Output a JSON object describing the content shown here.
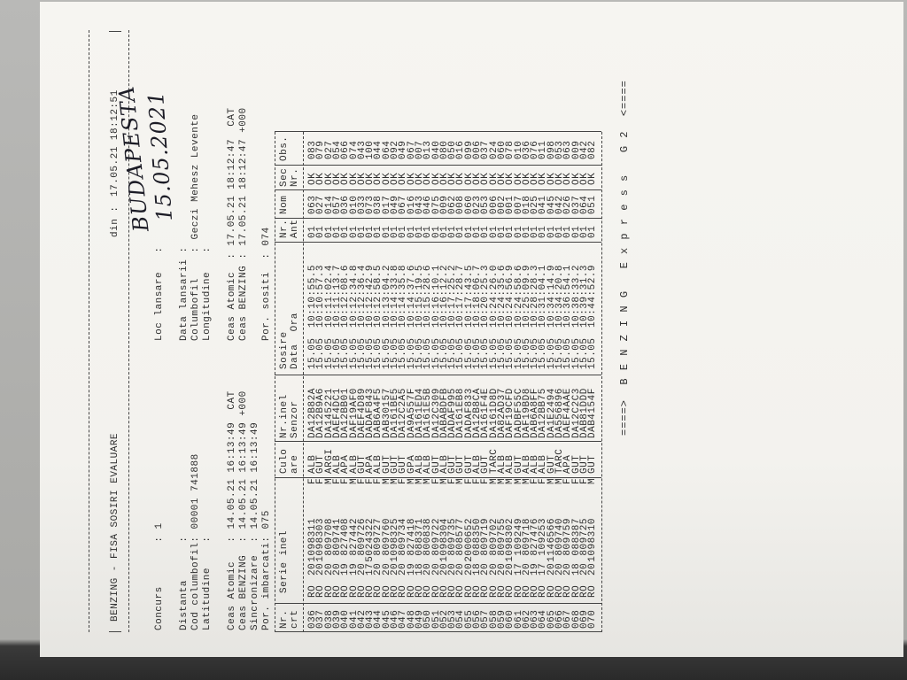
{
  "header": {
    "title": "BENZING - FISA SOSIRI EVALUARE",
    "date_label": "din :",
    "date": "17.05.21 18:12:51"
  },
  "fields_left": [
    {
      "label": "Concurs       :",
      "value": "1"
    },
    {
      "label": "Distanta      :"
    },
    {
      "label": "Cod columbofil:",
      "value": "00001 741888"
    },
    {
      "label": "Latitudine    :"
    },
    {
      "label": "Ceas Atomic   :",
      "value": "14.05.21 16:13:49  CAT"
    },
    {
      "label": "Ceas BENZING  :",
      "value": "14.05.21 16:13:49 +000"
    },
    {
      "label": "Sincronizare  :",
      "value": "14.05.21 16:13:49"
    },
    {
      "label": "Por. imbarcati:",
      "value": "075"
    }
  ],
  "fields_right": [
    {
      "label": "Loc lansare   :"
    },
    {
      "label": "Data lansarii :"
    },
    {
      "label": "Columbofil    :",
      "value": "Geczi Mehesz Levente"
    },
    {
      "label": "Longitudine   :"
    },
    {
      "label": "Ceas Atomic  :",
      "value": "17.05.21 18:12:47  CAT"
    },
    {
      "label": "Ceas BENZING :",
      "value": "17.05.21 18:12:47 +000"
    },
    {
      "label": "Por. sositi  :",
      "value": "074"
    }
  ],
  "handwriting": {
    "place": "BUDAPESTA",
    "date": "15.05.2021"
  },
  "table": {
    "columns": [
      [
        "Nr.",
        "crt"
      ],
      [
        "Serie inel"
      ],
      [
        "Culo",
        "are"
      ],
      [
        "Nr.inel",
        "Senzor"
      ],
      [
        "Sosire",
        "Data  Ora"
      ],
      [
        "Nr.",
        "Ant"
      ],
      [
        "Nom"
      ],
      [
        "Sec",
        "Nr."
      ],
      [
        "Obs."
      ]
    ],
    "rows": [
      [
        "036",
        "RO",
        "20",
        "1098311",
        "F",
        "ALB",
        "DA12B82A",
        "15.05",
        "10:10:55.5",
        "01",
        "063",
        "OK",
        "083"
      ],
      [
        "037",
        "RO",
        "20",
        "1098303",
        "F",
        "GUT",
        "DA12B9A6",
        "15.05",
        "10:10:57.3",
        "01",
        "027",
        "OK",
        "079"
      ],
      [
        "038",
        "RO",
        "20",
        "809708",
        "M",
        "ARGI",
        "DA145221",
        "15.05",
        "10:11:02.4",
        "01",
        "014",
        "OK",
        "027"
      ],
      [
        "039",
        "RO",
        "20",
        "809741",
        "F",
        "ALB",
        "DAEF4DC1",
        "15.05",
        "10:11:13.7",
        "01",
        "057",
        "OK",
        "054"
      ],
      [
        "040",
        "RO",
        "19",
        "827408",
        "F",
        "APA",
        "DA12BB01",
        "15.05",
        "10:12:08.6",
        "01",
        "036",
        "OK",
        "066"
      ],
      [
        "041",
        "RO",
        "19",
        "827442",
        "M",
        "ALB",
        "DAF19AF0",
        "15.05",
        "10:12:34.8",
        "01",
        "010",
        "OK",
        "074"
      ],
      [
        "042",
        "RO",
        "20",
        "809726",
        "F",
        "GUT",
        "DAEF4D89",
        "15.05",
        "10:12:36.4",
        "01",
        "033",
        "OK",
        "043"
      ],
      [
        "043",
        "RO",
        "17",
        "5024322",
        "F",
        "APA",
        "DADAF843",
        "15.05",
        "10:12:42.9",
        "01",
        "073",
        "OK",
        "100"
      ],
      [
        "044",
        "RO",
        "20",
        "809727",
        "F",
        "ALB",
        "DAB6A4F5",
        "15.05",
        "10:12:58.5",
        "01",
        "038",
        "OK",
        "044"
      ],
      [
        "045",
        "RO",
        "20",
        "809760",
        "M",
        "GUT",
        "DAB30157",
        "15.05",
        "10:13:04.2",
        "01",
        "017",
        "OK",
        "064"
      ],
      [
        "046",
        "RO",
        "20",
        "1098325",
        "M",
        "GUT",
        "DA161BE5",
        "15.05",
        "10:14:33.8",
        "01",
        "049",
        "OK",
        "092"
      ],
      [
        "047",
        "RO",
        "20",
        "809734",
        "F",
        "GUT",
        "DA12C2A5",
        "15.05",
        "10:14:35.8",
        "01",
        "067",
        "OK",
        "049"
      ],
      [
        "048",
        "RO",
        "19",
        "827418",
        "M",
        "GPA",
        "DA9A557F",
        "15.05",
        "10:14:37.6",
        "01",
        "016",
        "OK",
        "067"
      ],
      [
        "049",
        "RO",
        "18",
        "088371",
        "M",
        "ALB",
        "DA161ED4",
        "15.05",
        "10:15:19.5",
        "01",
        "043",
        "OK",
        "007"
      ],
      [
        "050",
        "RO",
        "20",
        "800838",
        "M",
        "ALB",
        "DA161E5B",
        "15.05",
        "10:15:28.6",
        "01",
        "046",
        "OK",
        "013"
      ],
      [
        "051",
        "RO",
        "20",
        "809722",
        "F",
        "GUT",
        "DA12C309",
        "15.05",
        "10:16:10.1",
        "01",
        "075",
        "OK",
        "040"
      ],
      [
        "052",
        "RO",
        "20",
        "1098304",
        "M",
        "ALB",
        "DABABDFB",
        "15.05",
        "10:16:12.2",
        "01",
        "009",
        "OK",
        "080"
      ],
      [
        "053",
        "RO",
        "20",
        "809735",
        "F",
        "GUT",
        "DADAF995",
        "15.05",
        "10:17:25.2",
        "01",
        "062",
        "OK",
        "050"
      ],
      [
        "054",
        "RO",
        "20",
        "808577",
        "M",
        "GUT",
        "DA161EB8",
        "15.05",
        "10:17:28.7",
        "01",
        "008",
        "OK",
        "016"
      ],
      [
        "055",
        "RO",
        "20",
        "2000652",
        "F",
        "GUT",
        "DADAF833",
        "15.05",
        "10:17:43.5",
        "01",
        "060",
        "OK",
        "099"
      ],
      [
        "056",
        "RO",
        "18",
        "088350",
        "F",
        "ALB",
        "DA12B8CA",
        "15.05",
        "10:18:06.7",
        "01",
        "023",
        "OK",
        "006"
      ],
      [
        "057",
        "RO",
        "20",
        "809719",
        "F",
        "GUT",
        "DA161F4E",
        "15.05",
        "10:20:25.3",
        "01",
        "053",
        "OK",
        "037"
      ],
      [
        "058",
        "RO",
        "20",
        "809702",
        "M",
        "TARC",
        "DA161D8D",
        "15.05",
        "10:24:26.0",
        "01",
        "006",
        "OK",
        "024"
      ],
      [
        "059",
        "RO",
        "20",
        "809755",
        "M",
        "ALB",
        "DA82AD37",
        "15.05",
        "10:24:35.6",
        "01",
        "002",
        "OK",
        "060"
      ],
      [
        "060",
        "RO",
        "20",
        "1098302",
        "M",
        "ALB",
        "DAF19CFD",
        "15.05",
        "10:24:56.9",
        "01",
        "001",
        "OK",
        "078"
      ],
      [
        "061",
        "RO",
        "17",
        "109249",
        "M",
        "GUT",
        "DADBF55C",
        "15.05",
        "10:24:58.6",
        "01",
        "007",
        "OK",
        "010"
      ],
      [
        "062",
        "RO",
        "20",
        "809718",
        "M",
        "ALB",
        "DAF19BD8",
        "15.05",
        "10:25:09.9",
        "01",
        "018",
        "OK",
        "036"
      ],
      [
        "063",
        "RO",
        "19",
        "827476",
        "F",
        "ALB",
        "DAB6A8FF",
        "15.05",
        "10:28:28.3",
        "01",
        "025",
        "OK",
        "076"
      ],
      [
        "064",
        "RO",
        "17",
        "109253",
        "F",
        "ALB",
        "DA12BB75",
        "15.05",
        "10:31:04.1",
        "01",
        "041",
        "OK",
        "011"
      ],
      [
        "065",
        "RO",
        "20",
        "1146566",
        "M",
        "GUT",
        "DA1E2494",
        "15.05",
        "10:34:14.9",
        "01",
        "045",
        "OK",
        "098"
      ],
      [
        "066",
        "RO",
        "20",
        "809740",
        "M",
        "TARC",
        "DA556896",
        "15.05",
        "10:34:20.8",
        "01",
        "042",
        "OK",
        "053"
      ],
      [
        "067",
        "RO",
        "20",
        "809759",
        "F",
        "APA",
        "DAEF4AAE",
        "15.05",
        "10:36:54.1",
        "01",
        "026",
        "OK",
        "063"
      ],
      [
        "068",
        "RO",
        "18",
        "088387",
        "F",
        "GUT",
        "DA12C2C3",
        "15.05",
        "10:38:33.2",
        "01",
        "037",
        "OK",
        "009"
      ],
      [
        "069",
        "RO",
        "20",
        "809725",
        "F",
        "GUT",
        "DAB81DDD",
        "15.05",
        "10:39:31.3",
        "01",
        "064",
        "OK",
        "042"
      ],
      [
        "070",
        "RO",
        "20",
        "1098310",
        "M",
        "GUT",
        "DAB4154F",
        "15.05",
        "10:44:52.9",
        "01",
        "051",
        "OK",
        "082"
      ]
    ]
  },
  "footer": "====>  B E N Z I N G   E x p r e s s   G 2  <===="
}
